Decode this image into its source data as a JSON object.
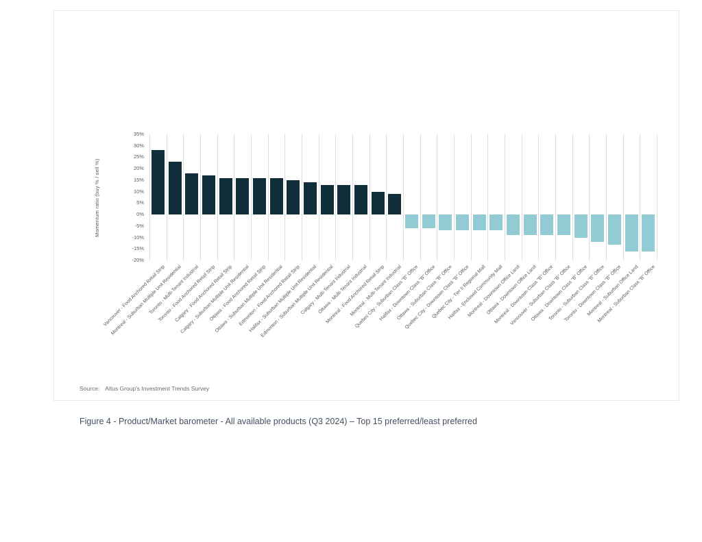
{
  "source": {
    "label": "Source:",
    "text": "Altus Group's Investment Trends Survey"
  },
  "caption": "Figure 4 - Product/Market barometer - All available products (Q3 2024) – Top 15 preferred/least preferred",
  "chart_data": {
    "type": "bar",
    "title": "",
    "xlabel": "",
    "ylabel": "Momentum ratio (buy % / sell %)",
    "ylim": [
      -20,
      35
    ],
    "yticks": [
      35,
      30,
      25,
      20,
      15,
      10,
      5,
      0,
      -5,
      -10,
      -15,
      -20
    ],
    "ytick_suffix": "%",
    "grid": "vertical-only",
    "legend": "none",
    "colors": {
      "positive_bar": "#102e3a",
      "negative_bar": "#93cbd4",
      "gridline": "#dcdcdc",
      "axis_text": "#595959",
      "caption_text": "#43505f"
    },
    "categories": [
      "Vancouver - Food Anchored Retail Strip",
      "Montreal - Suburban Multiple Unit Residential",
      "Toronto - Multi-Tenant Industrial",
      "Toronto - Food Anchored Retail Strip",
      "Calgary - Food Anchored Retail Strip",
      "Calgary - Suburban Multiple Unit Residential",
      "Ottawa - Food Anchored Retail Strip",
      "Ottawa - Suburban Multiple Unit Residential",
      "Edmonton - Food Anchored Retail Strip",
      "Halifax - Suburban Multiple Unit Residential",
      "Edmonton - Suburban Multiple Unit Residential",
      "Calgary - Multi-Tenant Industrial",
      "Ottawa - Multi-Tenant Industrial",
      "Montreal - Food Anchored Retail Strip",
      "Montreal - Multi-Tenant Industrial",
      "Quebec City - Suburban Class \"B\" Office",
      "Halifax - Downtown Class \"B\" Office",
      "Ottawa - Suburban Class \"B\" Office",
      "Quebec City - Downtown Class \"B\" Office",
      "Quebec City - Tier II Regional Mall",
      "Halifax - Enclosed Community Mall",
      "Montreal - Downtown Office Land",
      "Ottawa - Downtown Office Land",
      "Montreal - Downtown Class \"B\" Office",
      "Vancouver - Suburban Class \"B\" Office",
      "Ottawa - Downtown Class \"B\" Office",
      "Toronto - Suburban Class \"B\" Office",
      "Toronto - Downtown Class \"B\" Office",
      "Montreal - Suburban Office Land",
      "Montreal - Suburban Class \"B\" Office"
    ],
    "values": [
      28,
      23,
      18,
      17,
      16,
      16,
      16,
      16,
      15,
      14,
      13,
      13,
      13,
      10,
      9,
      -6,
      -6,
      -7,
      -7,
      -7,
      -7,
      -9,
      -9,
      -9,
      -9,
      -10,
      -12,
      -13,
      -16,
      -16
    ]
  }
}
